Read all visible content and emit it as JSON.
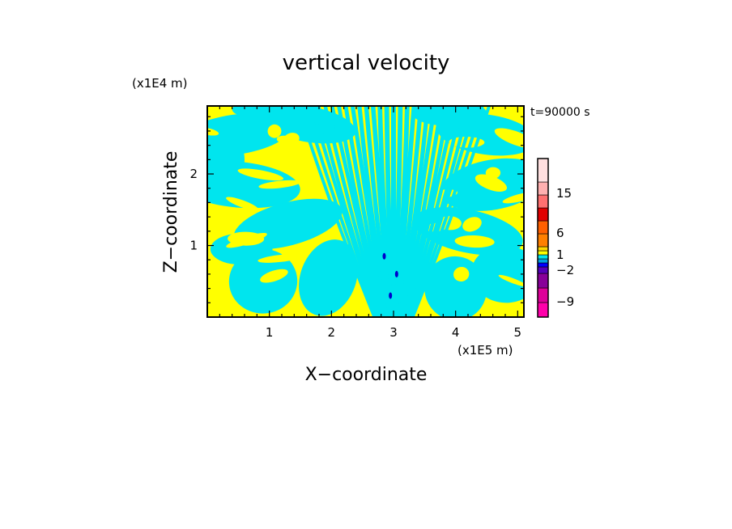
{
  "chart_data": {
    "type": "heatmap",
    "title": "vertical velocity",
    "time_label": "t=90000 s",
    "xlabel": "X−coordinate",
    "ylabel": "Z−coordinate",
    "x_unit": "(x1E5 m)",
    "y_unit": "(x1E4 m)",
    "xlim": [
      0,
      5.1
    ],
    "ylim": [
      0,
      2.95
    ],
    "x_ticks": [
      "1",
      "2",
      "3",
      "4",
      "5"
    ],
    "y_ticks": [
      "1",
      "2"
    ],
    "grid": false,
    "field_colors": {
      "positive": "#ffff00",
      "negative": "#00e5ee"
    },
    "colorbar": {
      "position": "right",
      "tick_labels": [
        "15",
        "6",
        "1",
        "−2",
        "−9"
      ],
      "levels": [
        {
          "color": "#ff00aa"
        },
        {
          "color": "#dd0099"
        },
        {
          "color": "#880099"
        },
        {
          "color": "#5500bb"
        },
        {
          "color": "#0000ff"
        },
        {
          "color": "#00a0e0"
        },
        {
          "color": "#00e5ee"
        },
        {
          "color": "#ffff00"
        },
        {
          "color": "#ffd700"
        },
        {
          "color": "#ff8000"
        },
        {
          "color": "#ff6000"
        },
        {
          "color": "#e00000"
        },
        {
          "color": "#ff7070"
        },
        {
          "color": "#ffb0b0"
        },
        {
          "color": "#ffe0e0"
        }
      ]
    }
  }
}
